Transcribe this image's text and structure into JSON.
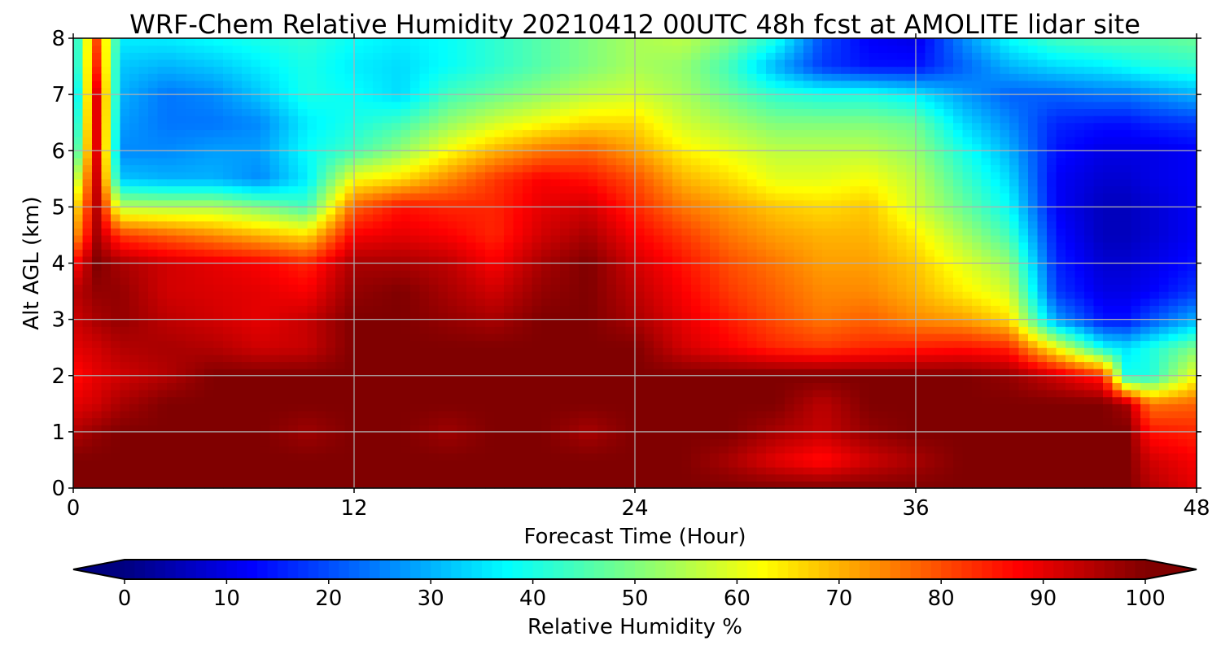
{
  "chart_data": {
    "type": "heatmap",
    "title": "WRF-Chem Relative Humidity 20210412 00UTC 48h fcst at AMOLITE lidar site",
    "xlabel": "Forecast Time (Hour)",
    "ylabel": "Alt AGL (km)",
    "xlim": [
      0,
      48
    ],
    "ylim": [
      0,
      8
    ],
    "xticks": [
      0,
      12,
      24,
      36,
      48
    ],
    "yticks": [
      0,
      1,
      2,
      3,
      4,
      5,
      6,
      7,
      8
    ],
    "grid": true,
    "colormap": "jet",
    "colorbar": {
      "label": "Relative Humidity %",
      "min": 0,
      "max": 100,
      "ticks": [
        0,
        10,
        20,
        30,
        40,
        50,
        60,
        70,
        80,
        90,
        100
      ],
      "extend": "both",
      "orientation": "horizontal"
    },
    "x": [
      0,
      1,
      2,
      4,
      6,
      8,
      10,
      12,
      14,
      16,
      18,
      20,
      22,
      24,
      26,
      28,
      30,
      32,
      34,
      36,
      38,
      40,
      42,
      44,
      45,
      46,
      48
    ],
    "y": [
      0,
      0.5,
      1,
      1.5,
      2,
      2.5,
      3,
      3.5,
      4,
      4.5,
      5,
      5.5,
      6,
      6.5,
      7,
      7.5,
      8
    ],
    "z": [
      [
        100,
        100,
        100,
        100,
        100,
        100,
        100,
        100,
        100,
        100,
        100,
        100,
        100,
        100,
        100,
        100,
        100,
        100,
        100,
        100,
        100,
        100,
        100,
        100,
        100,
        95,
        90
      ],
      [
        100,
        100,
        100,
        100,
        100,
        100,
        100,
        100,
        100,
        100,
        100,
        100,
        100,
        100,
        100,
        96,
        90,
        86,
        92,
        96,
        100,
        100,
        100,
        100,
        100,
        92,
        88
      ],
      [
        95,
        98,
        100,
        100,
        100,
        100,
        97,
        100,
        100,
        97,
        100,
        100,
        96,
        100,
        100,
        100,
        96,
        93,
        98,
        100,
        100,
        100,
        100,
        100,
        100,
        86,
        84
      ],
      [
        90,
        92,
        96,
        100,
        100,
        100,
        100,
        100,
        100,
        100,
        100,
        100,
        100,
        100,
        100,
        100,
        100,
        94,
        100,
        100,
        100,
        100,
        100,
        100,
        96,
        76,
        78
      ],
      [
        86,
        90,
        92,
        95,
        100,
        100,
        100,
        100,
        100,
        100,
        100,
        100,
        100,
        100,
        100,
        100,
        100,
        100,
        100,
        100,
        100,
        98,
        92,
        84,
        40,
        40,
        62
      ],
      [
        90,
        92,
        95,
        96,
        95,
        92,
        93,
        100,
        100,
        100,
        100,
        100,
        100,
        100,
        92,
        88,
        84,
        82,
        84,
        85,
        86,
        84,
        62,
        38,
        35,
        40,
        50
      ],
      [
        92,
        96,
        98,
        94,
        92,
        90,
        93,
        100,
        100,
        98,
        96,
        100,
        100,
        96,
        90,
        85,
        80,
        76,
        78,
        74,
        72,
        66,
        28,
        14,
        14,
        20,
        30
      ],
      [
        94,
        98,
        98,
        92,
        91,
        90,
        88,
        98,
        100,
        96,
        92,
        98,
        100,
        94,
        88,
        82,
        78,
        74,
        74,
        70,
        64,
        58,
        18,
        10,
        10,
        12,
        18
      ],
      [
        86,
        100,
        96,
        92,
        90,
        88,
        84,
        96,
        96,
        94,
        88,
        96,
        100,
        92,
        86,
        80,
        76,
        72,
        72,
        68,
        60,
        52,
        16,
        8,
        8,
        10,
        14
      ],
      [
        70,
        96,
        82,
        78,
        74,
        70,
        66,
        88,
        90,
        88,
        84,
        92,
        96,
        88,
        82,
        76,
        72,
        70,
        70,
        64,
        54,
        44,
        14,
        6,
        6,
        8,
        12
      ],
      [
        62,
        94,
        56,
        55,
        55,
        50,
        44,
        78,
        86,
        84,
        84,
        90,
        92,
        84,
        76,
        72,
        68,
        66,
        68,
        58,
        48,
        38,
        12,
        6,
        6,
        8,
        12
      ],
      [
        50,
        92,
        32,
        30,
        30,
        26,
        36,
        62,
        66,
        74,
        82,
        88,
        86,
        80,
        70,
        66,
        60,
        60,
        62,
        56,
        44,
        34,
        12,
        8,
        8,
        10,
        12
      ],
      [
        36,
        90,
        26,
        26,
        28,
        28,
        38,
        44,
        52,
        62,
        70,
        76,
        78,
        72,
        64,
        60,
        56,
        56,
        56,
        52,
        40,
        30,
        14,
        10,
        10,
        10,
        12
      ],
      [
        30,
        90,
        28,
        24,
        24,
        26,
        36,
        40,
        44,
        52,
        58,
        62,
        66,
        66,
        58,
        54,
        50,
        50,
        50,
        48,
        34,
        26,
        16,
        14,
        14,
        16,
        18
      ],
      [
        26,
        90,
        30,
        24,
        26,
        32,
        40,
        38,
        34,
        44,
        48,
        52,
        56,
        58,
        54,
        48,
        42,
        40,
        40,
        36,
        28,
        22,
        22,
        24,
        24,
        26,
        30
      ],
      [
        32,
        84,
        32,
        30,
        32,
        36,
        40,
        36,
        34,
        38,
        42,
        46,
        50,
        54,
        52,
        44,
        30,
        18,
        14,
        14,
        22,
        30,
        34,
        36,
        38,
        40,
        42
      ],
      [
        34,
        80,
        36,
        36,
        38,
        40,
        42,
        38,
        36,
        38,
        42,
        46,
        50,
        54,
        56,
        50,
        40,
        20,
        12,
        10,
        26,
        38,
        44,
        46,
        46,
        46,
        48
      ]
    ]
  }
}
